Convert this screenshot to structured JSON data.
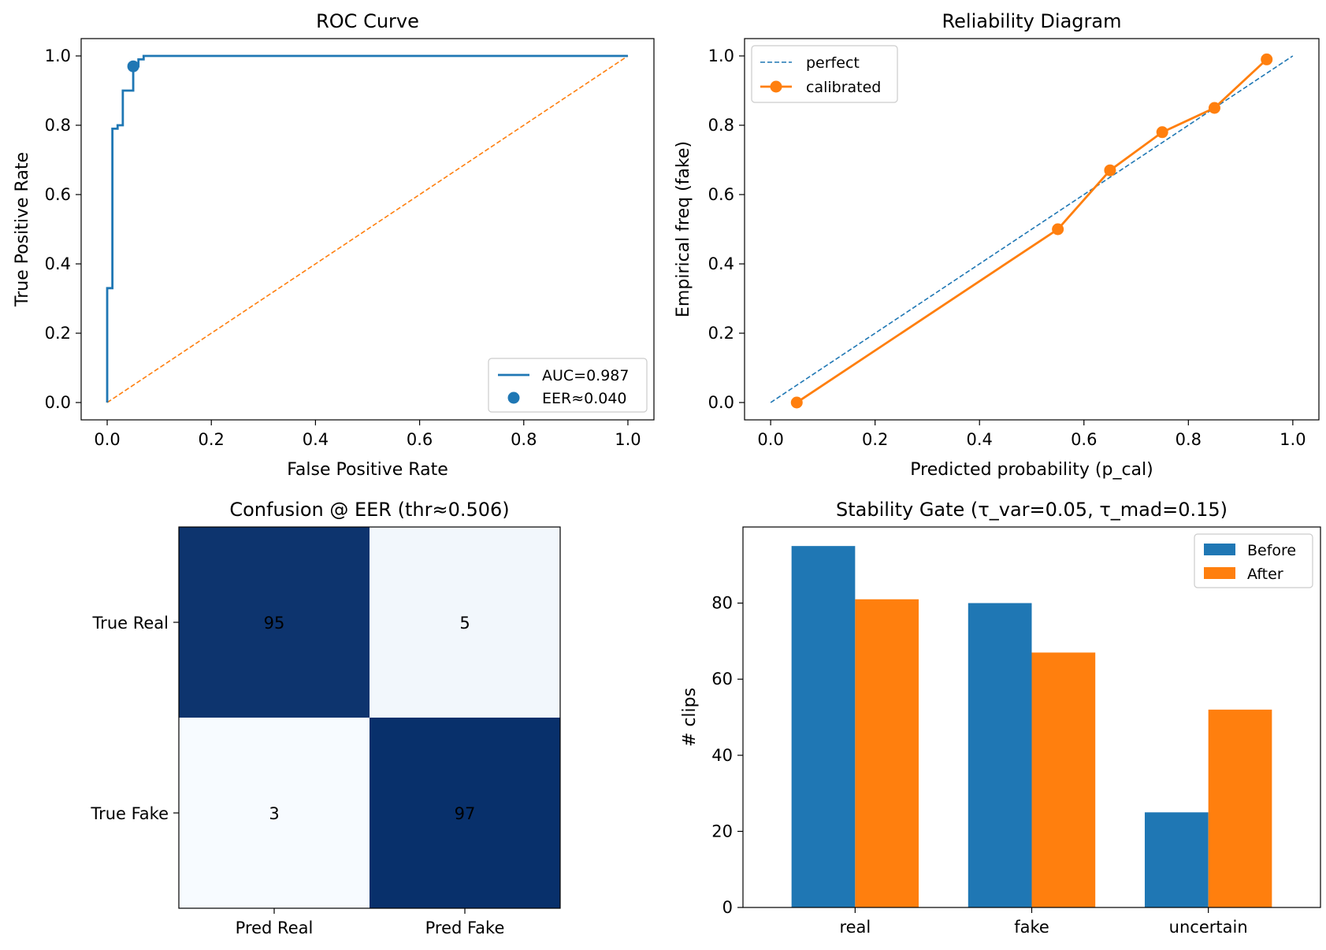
{
  "colors": {
    "blue": "#1f77b4",
    "orange": "#ff7f0e",
    "cm_dark": "#08306b",
    "cm_light": "#f7fbff"
  },
  "chart_data": [
    {
      "type": "line",
      "title": "ROC Curve",
      "xlabel": "False Positive Rate",
      "ylabel": "True Positive Rate",
      "xlim": [
        -0.05,
        1.05
      ],
      "ylim": [
        -0.05,
        1.05
      ],
      "xticks": [
        "0.0",
        "0.2",
        "0.4",
        "0.6",
        "0.8",
        "1.0"
      ],
      "yticks": [
        "0.0",
        "0.2",
        "0.4",
        "0.6",
        "0.8",
        "1.0"
      ],
      "legend_position": "lower-right",
      "series": [
        {
          "name": "AUC=0.987",
          "style": "step-line",
          "x": [
            0.0,
            0.0,
            0.01,
            0.01,
            0.02,
            0.02,
            0.03,
            0.03,
            0.05,
            0.05,
            0.06,
            0.06,
            0.07,
            0.07,
            1.0
          ],
          "y": [
            0.0,
            0.33,
            0.33,
            0.79,
            0.79,
            0.8,
            0.8,
            0.9,
            0.9,
            0.97,
            0.97,
            0.99,
            0.99,
            1.0,
            1.0
          ]
        },
        {
          "name": "EER≈0.040",
          "style": "point",
          "x": [
            0.05
          ],
          "y": [
            0.97
          ]
        },
        {
          "style": "dashed-diagonal",
          "x": [
            0.0,
            1.0
          ],
          "y": [
            0.0,
            1.0
          ]
        }
      ]
    },
    {
      "type": "line",
      "title": "Reliability Diagram",
      "xlabel": "Predicted probability (p_cal)",
      "ylabel": "Empirical freq (fake)",
      "xlim": [
        -0.05,
        1.05
      ],
      "ylim": [
        -0.05,
        1.05
      ],
      "xticks": [
        "0.0",
        "0.2",
        "0.4",
        "0.6",
        "0.8",
        "1.0"
      ],
      "yticks": [
        "0.0",
        "0.2",
        "0.4",
        "0.6",
        "0.8",
        "1.0"
      ],
      "legend_position": "upper-left",
      "series": [
        {
          "name": "perfect",
          "style": "dashed",
          "x": [
            0.0,
            1.0
          ],
          "y": [
            0.0,
            1.0
          ]
        },
        {
          "name": "calibrated",
          "style": "line-markers",
          "x": [
            0.05,
            0.55,
            0.65,
            0.75,
            0.85,
            0.95
          ],
          "y": [
            0.0,
            0.5,
            0.67,
            0.78,
            0.85,
            0.99
          ]
        }
      ]
    },
    {
      "type": "heatmap",
      "title": "Confusion @ EER (thr≈0.506)",
      "x_categories": [
        "Pred Real",
        "Pred Fake"
      ],
      "y_categories": [
        "True Real",
        "True Fake"
      ],
      "values": [
        [
          95,
          5
        ],
        [
          3,
          97
        ]
      ]
    },
    {
      "type": "bar",
      "title": "Stability Gate (τ_var=0.05, τ_mad=0.15)",
      "xlabel": "",
      "ylabel": "# clips",
      "ylim": [
        0,
        100
      ],
      "yticks": [
        "0",
        "20",
        "40",
        "60",
        "80"
      ],
      "legend_position": "upper-right",
      "categories": [
        "real",
        "fake",
        "uncertain"
      ],
      "series": [
        {
          "name": "Before",
          "values": [
            95,
            80,
            25
          ]
        },
        {
          "name": "After",
          "values": [
            81,
            67,
            52
          ]
        }
      ]
    }
  ]
}
